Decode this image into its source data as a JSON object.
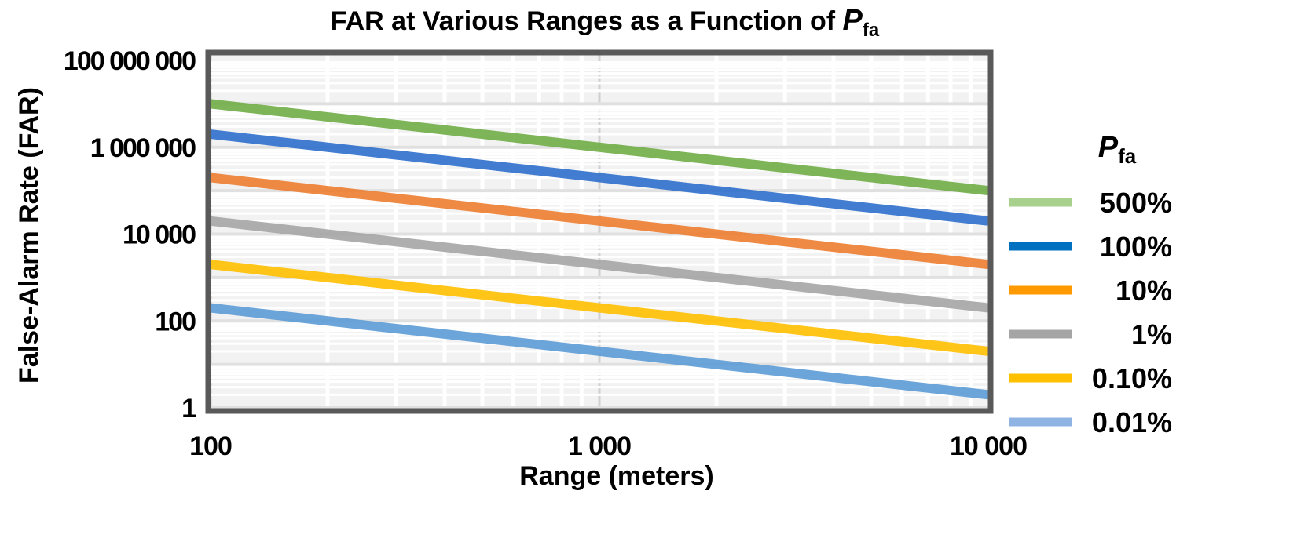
{
  "chart_data": {
    "type": "line",
    "title": "FAR at Various Ranges as a Function of",
    "title_symbol": "P",
    "title_symbol_sub": "fa",
    "xlabel": "Range (meters)",
    "ylabel": "False-Alarm Rate (FAR)",
    "x_scale": "log",
    "y_scale": "log",
    "xlim": [
      100,
      10000
    ],
    "ylim": [
      1,
      100000000
    ],
    "x_ticks": [
      {
        "value": 100,
        "label": "100"
      },
      {
        "value": 1000,
        "label": "1 000"
      },
      {
        "value": 10000,
        "label": "10 000"
      }
    ],
    "y_ticks": [
      {
        "value": 100000000,
        "label": "100 000 000"
      },
      {
        "value": 1000000,
        "label": "1 000 000"
      },
      {
        "value": 10000,
        "label": "10 000"
      },
      {
        "value": 100,
        "label": "100"
      },
      {
        "value": 1,
        "label": "1"
      }
    ],
    "grid": true,
    "legend": {
      "position": "right",
      "title": "P",
      "title_sub": "fa"
    },
    "x": [
      100,
      1000,
      10000
    ],
    "series": [
      {
        "name": "500%",
        "color": "#70ad47",
        "legend_color": "#a9d18e",
        "values": [
          10000000,
          1000000,
          100000
        ]
      },
      {
        "name": "100%",
        "color": "#2e6fcc",
        "legend_color": "#0070c0",
        "values": [
          2000000,
          200000,
          20000
        ]
      },
      {
        "name": "10%",
        "color": "#ed7d31",
        "legend_color": "#ff9900",
        "values": [
          200000,
          20000,
          2000
        ]
      },
      {
        "name": "1%",
        "color": "#a5a5a5",
        "legend_color": "#a5a5a5",
        "values": [
          20000,
          2000,
          200
        ]
      },
      {
        "name": "0.10%",
        "color": "#ffc000",
        "legend_color": "#ffc000",
        "values": [
          2000,
          200,
          20
        ]
      },
      {
        "name": "0.01%",
        "color": "#5b9bd5",
        "legend_color": "#8fb4e3",
        "values": [
          200,
          20,
          2
        ]
      }
    ]
  }
}
